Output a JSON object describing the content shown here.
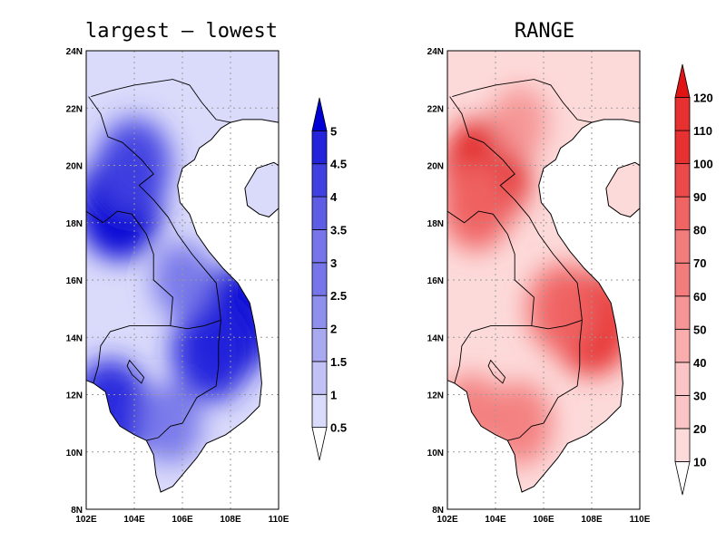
{
  "panels": [
    {
      "title": "largest – lowest",
      "palette": [
        "#f2f2fe",
        "#dadafb",
        "#c1c1f6",
        "#a9a9f2",
        "#8f8fee",
        "#7676ea",
        "#5d5de6",
        "#4141e2",
        "#2323dc",
        "#0000d4"
      ],
      "colorbar_labels": [
        "0.5",
        "1",
        "1.5",
        "2",
        "2.5",
        "3",
        "3.5",
        "4",
        "4.5",
        "5"
      ],
      "hotspots": [
        {
          "lon": 103.4,
          "lat": 18.6,
          "v": 0.95
        },
        {
          "lon": 104.0,
          "lat": 20.0,
          "v": 0.75
        },
        {
          "lon": 108.0,
          "lat": 14.5,
          "v": 1.0
        },
        {
          "lon": 107.2,
          "lat": 13.5,
          "v": 0.85
        },
        {
          "lon": 103.0,
          "lat": 11.4,
          "v": 0.9
        },
        {
          "lon": 105.5,
          "lat": 11.0,
          "v": 0.55
        },
        {
          "lon": 106.0,
          "lat": 16.0,
          "v": 0.5
        }
      ]
    },
    {
      "title": "RANGE",
      "palette": [
        "#fff0f0",
        "#fddada",
        "#fbc5c5",
        "#f9adad",
        "#f69595",
        "#f37d7d",
        "#f06464",
        "#ec4a4a",
        "#e73030",
        "#e01414"
      ],
      "colorbar_labels": [
        "10",
        "20",
        "30",
        "40",
        "50",
        "60",
        "70",
        "80",
        "90",
        "100",
        "110",
        "120"
      ],
      "hotspots": [
        {
          "lon": 103.6,
          "lat": 19.7,
          "v": 1.0
        },
        {
          "lon": 103.2,
          "lat": 18.6,
          "v": 0.7
        },
        {
          "lon": 108.0,
          "lat": 14.5,
          "v": 0.9
        },
        {
          "lon": 106.8,
          "lat": 15.0,
          "v": 0.7
        },
        {
          "lon": 105.0,
          "lat": 11.0,
          "v": 0.6
        },
        {
          "lon": 103.0,
          "lat": 11.4,
          "v": 0.5
        },
        {
          "lon": 105.0,
          "lat": 21.5,
          "v": 0.45
        }
      ]
    }
  ],
  "axes": {
    "lon_ticks": [
      "102E",
      "104E",
      "106E",
      "108E",
      "110E"
    ],
    "lat_ticks": [
      "8N",
      "10N",
      "12N",
      "14N",
      "16N",
      "18N",
      "20N",
      "22N",
      "24N"
    ],
    "lon_range": [
      102,
      110
    ],
    "lat_range": [
      8,
      24
    ]
  }
}
